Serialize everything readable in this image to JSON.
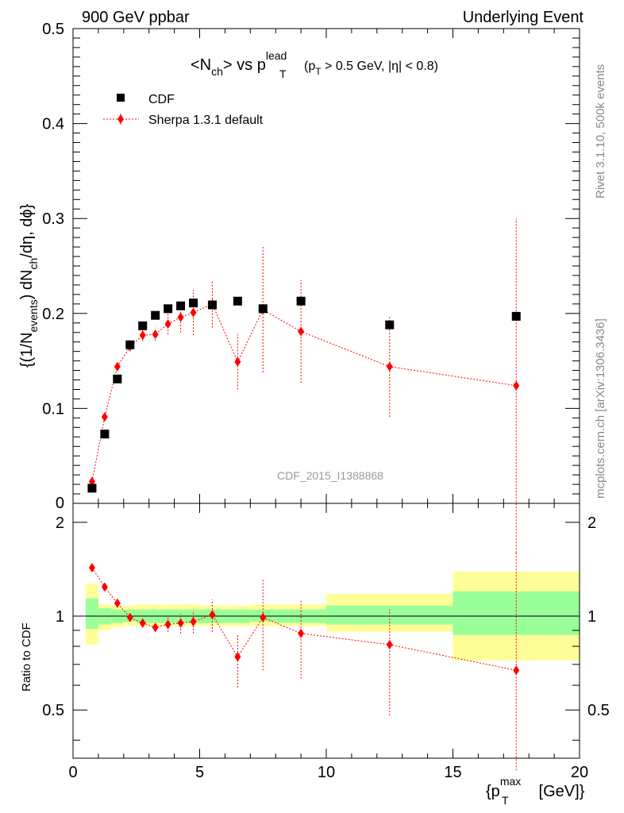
{
  "header": {
    "left": "900 GeV ppbar",
    "right": "Underlying Event"
  },
  "side_labels": {
    "rivet": "Rivet 3.1.10,  500k events",
    "mcplots": "mcplots.cern.ch [arXiv:1306.3436]"
  },
  "watermark": "CDF_2015_I1388868",
  "colors": {
    "cdf": "#000000",
    "mc": "#ff0000",
    "band_inner": "#99ff99",
    "band_outer": "#ffff99"
  },
  "chart_data": [
    {
      "type": "scatter",
      "panel": "main",
      "title_parts": {
        "pre": "<N",
        "pre_sub": "ch",
        "mid": "> vs p",
        "mid_sup": "lead",
        "mid_sub": "T",
        "cut_pre": "(p",
        "cut_sub": "T",
        "cut_post": " > 0.5 GeV, |η| < 0.8)"
      },
      "ylabel_parts": {
        "a": "{(1/N",
        "a_sub": "events",
        "b": ") dN",
        "b_sub": "ch",
        "c": "/dη, dϕ}"
      },
      "xlim": [
        0,
        20
      ],
      "ylim": [
        0,
        0.5
      ],
      "yticks": [
        0.1,
        0.2,
        0.3,
        0.4,
        0.5
      ],
      "ytick_labels": [
        "0.1",
        "0.2",
        "0.3",
        "0.4",
        "0.5"
      ],
      "y_zero_label": "0",
      "legend_position": "top-left",
      "series": [
        {
          "name": "CDF",
          "marker": "square",
          "x": [
            0.75,
            1.25,
            1.75,
            2.25,
            2.75,
            3.25,
            3.75,
            4.25,
            4.75,
            5.5,
            6.5,
            7.5,
            9.0,
            12.5,
            17.5
          ],
          "y": [
            0.016,
            0.073,
            0.131,
            0.167,
            0.187,
            0.198,
            0.205,
            0.208,
            0.211,
            0.209,
            0.213,
            0.205,
            0.213,
            0.188,
            0.197
          ]
        },
        {
          "name": "Sherpa 1.3.1 default",
          "marker": "diamond",
          "line": "dotted",
          "x": [
            0.75,
            1.25,
            1.75,
            2.25,
            2.75,
            3.25,
            3.75,
            4.25,
            4.75,
            5.5,
            6.5,
            7.5,
            9.0,
            12.5,
            17.5
          ],
          "y": [
            0.023,
            0.091,
            0.144,
            0.165,
            0.177,
            0.178,
            0.189,
            0.196,
            0.201,
            0.21,
            0.149,
            0.204,
            0.181,
            0.144,
            0.124
          ],
          "err": [
            0.002,
            0.003,
            0.003,
            0.004,
            0.006,
            0.007,
            0.011,
            0.016,
            0.024,
            0.025,
            0.029,
            0.066,
            0.054,
            0.053,
            0.176
          ]
        }
      ]
    },
    {
      "type": "scatter",
      "panel": "ratio",
      "ylabel": "Ratio to CDF",
      "xlabel_parts": {
        "pre": "{p",
        "sup": "max",
        "sub": "T",
        "post": " [GeV]}"
      },
      "xlim": [
        0,
        20
      ],
      "ylim": [
        0.35,
        2.3
      ],
      "yscale": "log",
      "xticks": [
        0,
        5,
        10,
        15,
        20
      ],
      "xtick_labels": [
        "0",
        "5",
        "10",
        "15",
        "20"
      ],
      "yticks": [
        0.5,
        1,
        2
      ],
      "ytick_labels": [
        "0.5",
        "1",
        "2"
      ],
      "bands": {
        "edges": [
          0.5,
          1.0,
          1.5,
          2.0,
          2.5,
          3.0,
          3.5,
          4.0,
          4.5,
          5.0,
          6.0,
          7.0,
          8.0,
          10.0,
          15.0,
          20.0
        ],
        "inner_lo": [
          0.91,
          0.94,
          0.95,
          0.96,
          0.95,
          0.95,
          0.95,
          0.95,
          0.95,
          0.95,
          0.95,
          0.96,
          0.95,
          0.94,
          0.87
        ],
        "inner_hi": [
          1.14,
          1.06,
          1.05,
          1.05,
          1.05,
          1.05,
          1.05,
          1.05,
          1.05,
          1.05,
          1.05,
          1.05,
          1.05,
          1.08,
          1.2
        ],
        "outer_lo": [
          0.81,
          0.9,
          0.92,
          0.93,
          0.93,
          0.93,
          0.93,
          0.93,
          0.93,
          0.93,
          0.93,
          0.93,
          0.93,
          0.89,
          0.72
        ],
        "outer_hi": [
          1.27,
          1.09,
          1.08,
          1.08,
          1.09,
          1.09,
          1.09,
          1.09,
          1.09,
          1.08,
          1.08,
          1.09,
          1.09,
          1.18,
          1.39
        ]
      },
      "series": [
        {
          "name": "Sherpa 1.3.1 default",
          "x": [
            0.75,
            1.25,
            1.75,
            2.25,
            2.75,
            3.25,
            3.75,
            4.25,
            4.75,
            5.5,
            6.5,
            7.5,
            9.0,
            12.5,
            17.5
          ],
          "y": [
            1.43,
            1.24,
            1.1,
            0.99,
            0.95,
            0.92,
            0.94,
            0.95,
            0.96,
            1.01,
            0.74,
            0.99,
            0.88,
            0.81,
            0.67
          ],
          "err_lo": [
            0.02,
            0.02,
            0.02,
            0.02,
            0.03,
            0.03,
            0.05,
            0.07,
            0.08,
            0.12,
            0.15,
            0.32,
            0.25,
            0.33,
            0.35
          ],
          "err_hi": [
            0.02,
            0.02,
            0.02,
            0.02,
            0.03,
            0.03,
            0.05,
            0.07,
            0.08,
            0.12,
            0.13,
            0.32,
            0.25,
            0.24,
            0.93
          ]
        }
      ]
    }
  ]
}
